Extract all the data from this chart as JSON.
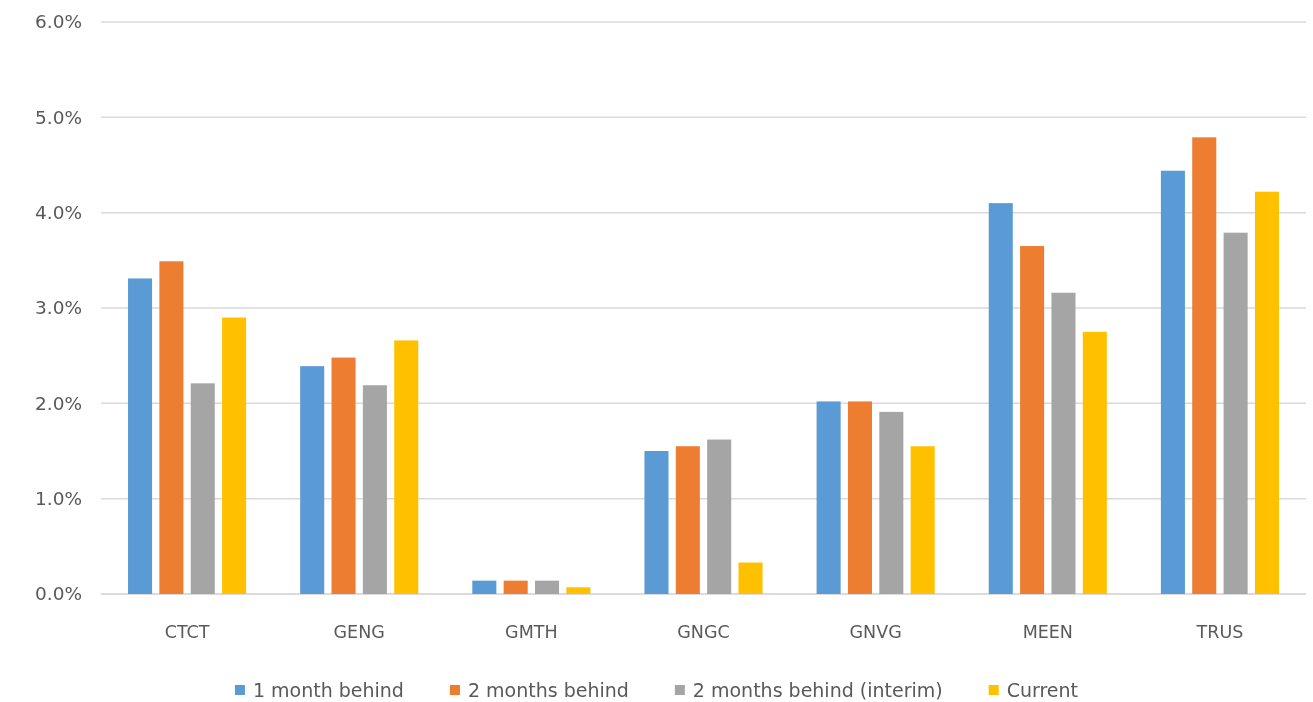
{
  "chart_data": {
    "type": "bar",
    "categories": [
      "CTCT",
      "GENG",
      "GMTH",
      "GNGC",
      "GNVG",
      "MEEN",
      "TRUS"
    ],
    "series": [
      {
        "name": "1 month behind",
        "color": "#5b9bd5",
        "values": [
          3.31,
          2.39,
          0.14,
          1.5,
          2.02,
          4.1,
          4.44
        ]
      },
      {
        "name": "2 months behind",
        "color": "#ed7d31",
        "values": [
          3.49,
          2.48,
          0.14,
          1.55,
          2.02,
          3.65,
          4.79
        ]
      },
      {
        "name": "2 months behind (interim)",
        "color": "#a5a5a5",
        "values": [
          2.21,
          2.19,
          0.14,
          1.62,
          1.91,
          3.16,
          3.79
        ]
      },
      {
        "name": "Current",
        "color": "#ffc000",
        "values": [
          2.9,
          2.66,
          0.07,
          0.33,
          1.55,
          2.75,
          4.22
        ]
      }
    ],
    "ylim": [
      0,
      6
    ],
    "yticks": [
      {
        "value": 0,
        "label": "0.0%"
      },
      {
        "value": 1,
        "label": "1.0%"
      },
      {
        "value": 2,
        "label": "2.0%"
      },
      {
        "value": 3,
        "label": "3.0%"
      },
      {
        "value": 4,
        "label": "4.0%"
      },
      {
        "value": 5,
        "label": "5.0%"
      },
      {
        "value": 6,
        "label": "6.0%"
      }
    ],
    "grid": "y",
    "legend": "bottom"
  }
}
